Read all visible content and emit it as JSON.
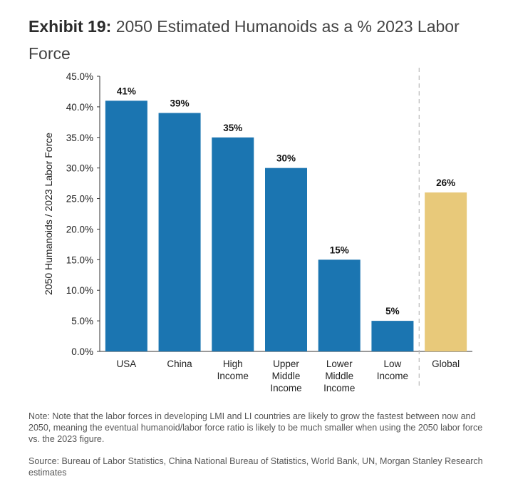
{
  "header": {
    "prefix": "Exhibit 19:",
    "title": "2050 Estimated Humanoids as a % 2023 Labor Force"
  },
  "chart_data": {
    "type": "bar",
    "ylabel": "2050 Humanoids / 2023 Labor Force",
    "ylim": [
      0,
      45
    ],
    "ytick_values": [
      0,
      5,
      10,
      15,
      20,
      25,
      30,
      35,
      40,
      45
    ],
    "ytick_labels": [
      "0.0%",
      "5.0%",
      "10.0%",
      "15.0%",
      "20.0%",
      "25.0%",
      "30.0%",
      "35.0%",
      "40.0%",
      "45.0%"
    ],
    "categories": [
      [
        "USA"
      ],
      [
        "China"
      ],
      [
        "High",
        "Income"
      ],
      [
        "Upper",
        "Middle",
        "Income"
      ],
      [
        "Lower",
        "Middle",
        "Income"
      ],
      [
        "Low",
        "Income"
      ],
      [
        "Global"
      ]
    ],
    "values": [
      41,
      39,
      35,
      30,
      15,
      5,
      26
    ],
    "data_labels": [
      "41%",
      "39%",
      "35%",
      "30%",
      "15%",
      "5%",
      "26%"
    ],
    "colors": [
      "#1b75b1",
      "#1b75b1",
      "#1b75b1",
      "#1b75b1",
      "#1b75b1",
      "#1b75b1",
      "#e8c97a"
    ],
    "separator_before": "Global",
    "grid": false
  },
  "footer": {
    "note": "Note: Note that the labor forces in developing LMI and LI countries are likely to grow the fastest between now and 2050, meaning the eventual humanoid/labor force ratio is likely to be much smaller when using the 2050 labor force vs. the 2023 figure.",
    "source": "Source: Bureau of Labor Statistics, China National Bureau of Statistics, World Bank, UN, Morgan Stanley Research estimates"
  }
}
